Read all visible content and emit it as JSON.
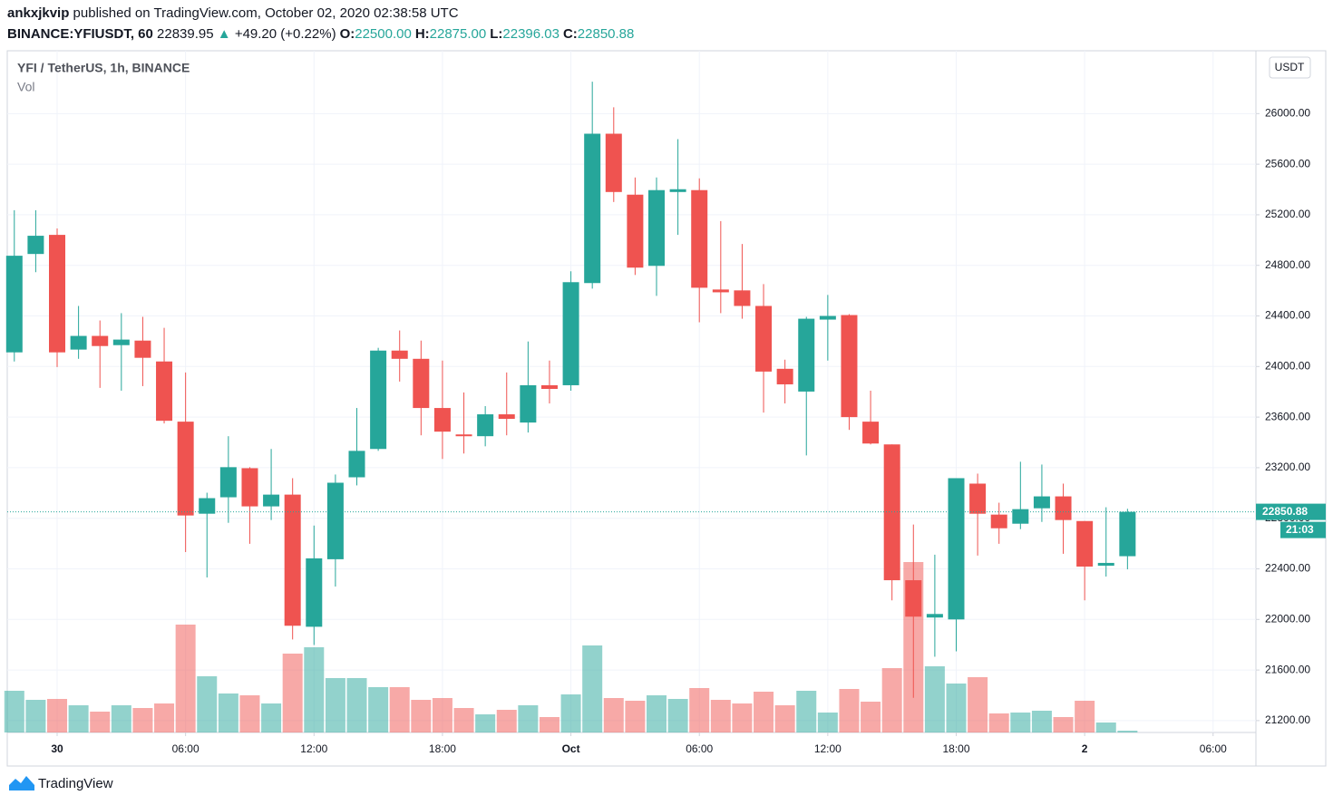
{
  "header": {
    "publisher": "ankxjkvip",
    "published": "published on TradingView.com, October 02, 2020 02:38:58 UTC",
    "symbol": "BINANCE:YFIUSDT, 60",
    "last": "22839.95",
    "arrow": "▲",
    "change": "+49.20 (+0.22%)",
    "ohlc": [
      {
        "label": "O:",
        "value": "22500.00"
      },
      {
        "label": "H:",
        "value": "22875.00"
      },
      {
        "label": "L:",
        "value": "22396.03"
      },
      {
        "label": "C:",
        "value": "22850.88"
      }
    ]
  },
  "chart_data": {
    "type": "candlestick",
    "title": "YFI / TetherUS, 1h, BINANCE",
    "volume_label": "Vol",
    "currency": "USDT",
    "x": [
      -2,
      -1,
      0,
      1,
      2,
      3,
      4,
      5,
      6,
      7,
      8,
      9,
      10,
      11,
      12,
      13,
      14,
      15,
      16,
      17,
      18,
      19,
      20,
      21,
      22,
      23,
      24,
      25,
      26,
      27,
      28,
      29,
      30,
      31,
      32,
      33,
      34,
      35,
      36,
      37,
      38,
      39,
      40,
      41,
      42,
      43,
      44,
      45,
      46,
      47,
      48,
      49,
      50
    ],
    "open": [
      24112,
      24890,
      25041,
      24134,
      24242,
      24169,
      24205,
      24040,
      23564,
      22836,
      22966,
      23196,
      22894,
      22987,
      21942,
      22476,
      23124,
      23348,
      24126,
      24061,
      23672,
      23463,
      23449,
      23622,
      23557,
      23852,
      23852,
      24660,
      25841,
      25359,
      24796,
      25380,
      25395,
      24609,
      24602,
      24479,
      23982,
      23802,
      24371,
      24407,
      23564,
      23384,
      22310,
      22015,
      22000,
      23074,
      22829,
      22757,
      22879,
      22973,
      22778,
      22425,
      22500
    ],
    "high": [
      25236,
      25236,
      25092,
      24479,
      24364,
      24422,
      24393,
      24306,
      23953,
      23002,
      23449,
      23204,
      23348,
      23117,
      22742,
      23146,
      23672,
      24148,
      24285,
      24205,
      24047,
      23795,
      23687,
      23953,
      24198,
      24047,
      24753,
      26252,
      26050,
      25495,
      25495,
      25798,
      25488,
      25150,
      24969,
      24652,
      24054,
      24393,
      24566,
      24414,
      23809,
      23384,
      22750,
      22512,
      23117,
      23153,
      22923,
      23247,
      23225,
      23074,
      22778,
      22887,
      22875
    ],
    "low": [
      24040,
      24746,
      23996,
      24061,
      23831,
      23809,
      23845,
      23550,
      22533,
      22332,
      22764,
      22598,
      22786,
      21842,
      21798,
      22260,
      23060,
      23333,
      23881,
      23456,
      23269,
      23312,
      23369,
      23456,
      23478,
      23708,
      23809,
      24616,
      25301,
      24724,
      24559,
      25041,
      24350,
      24422,
      24378,
      23636,
      23708,
      23297,
      24047,
      23499,
      23384,
      22151,
      21380,
      21705,
      21748,
      22505,
      22598,
      22714,
      22771,
      22519,
      22151,
      22339,
      22396.03
    ],
    "close": [
      24876,
      25034,
      24112,
      24242,
      24162,
      24213,
      24069,
      23571,
      22822,
      22959,
      23204,
      22894,
      22987,
      21950,
      22483,
      23081,
      23333,
      24126,
      24061,
      23672,
      23485,
      23449,
      23622,
      23586,
      23852,
      23823,
      24667,
      25841,
      25380,
      24782,
      25395,
      25402,
      24623,
      24587,
      24479,
      23960,
      23859,
      24378,
      24400,
      23600,
      23391,
      22310,
      22022,
      22043,
      23117,
      22836,
      22721,
      22872,
      22973,
      22786,
      22418,
      22447,
      22850.88
    ],
    "volume": [
      46,
      36,
      37,
      30,
      23,
      30,
      27,
      32,
      119,
      62,
      43,
      41,
      32,
      87,
      94,
      60,
      60,
      50,
      50,
      36,
      38,
      27,
      20,
      25,
      30,
      17,
      42,
      96,
      38,
      35,
      41,
      37,
      49,
      36,
      32,
      45,
      30,
      46,
      22,
      48,
      34,
      71,
      188,
      73,
      54,
      61,
      21,
      22,
      24,
      17,
      35,
      11,
      2
    ],
    "up_color": "#26a69a",
    "down_color": "#ef5350",
    "xlim": [
      -2.33,
      56
    ],
    "xticks": [
      {
        "value": 0,
        "label": "30"
      },
      {
        "value": 6,
        "label": "06:00"
      },
      {
        "value": 12,
        "label": "12:00"
      },
      {
        "value": 18,
        "label": "18:00"
      },
      {
        "value": 24,
        "label": "Oct"
      },
      {
        "value": 30,
        "label": "06:00"
      },
      {
        "value": 36,
        "label": "12:00"
      },
      {
        "value": 42,
        "label": "18:00"
      },
      {
        "value": 48,
        "label": "2"
      },
      {
        "value": 54,
        "label": "06:00"
      }
    ],
    "ylim": [
      21106,
      26497
    ],
    "yticks": [
      {
        "value": 21200,
        "label": "21200.00"
      },
      {
        "value": 21600,
        "label": "21600.00"
      },
      {
        "value": 22000,
        "label": "22000.00"
      },
      {
        "value": 22400,
        "label": "22400.00"
      },
      {
        "value": 22800,
        "label": "22800.00"
      },
      {
        "value": 23200,
        "label": "23200.00"
      },
      {
        "value": 23600,
        "label": "23600.00"
      },
      {
        "value": 24000,
        "label": "24000.00"
      },
      {
        "value": 24400,
        "label": "24400.00"
      },
      {
        "value": 24800,
        "label": "24800.00"
      },
      {
        "value": 25200,
        "label": "25200.00"
      },
      {
        "value": 25600,
        "label": "25600.00"
      },
      {
        "value": 26000,
        "label": "26000.00"
      }
    ],
    "grid": true,
    "last_price_label": "22850.88",
    "countdown": "21:03"
  },
  "footer": {
    "brand": "TradingView"
  }
}
